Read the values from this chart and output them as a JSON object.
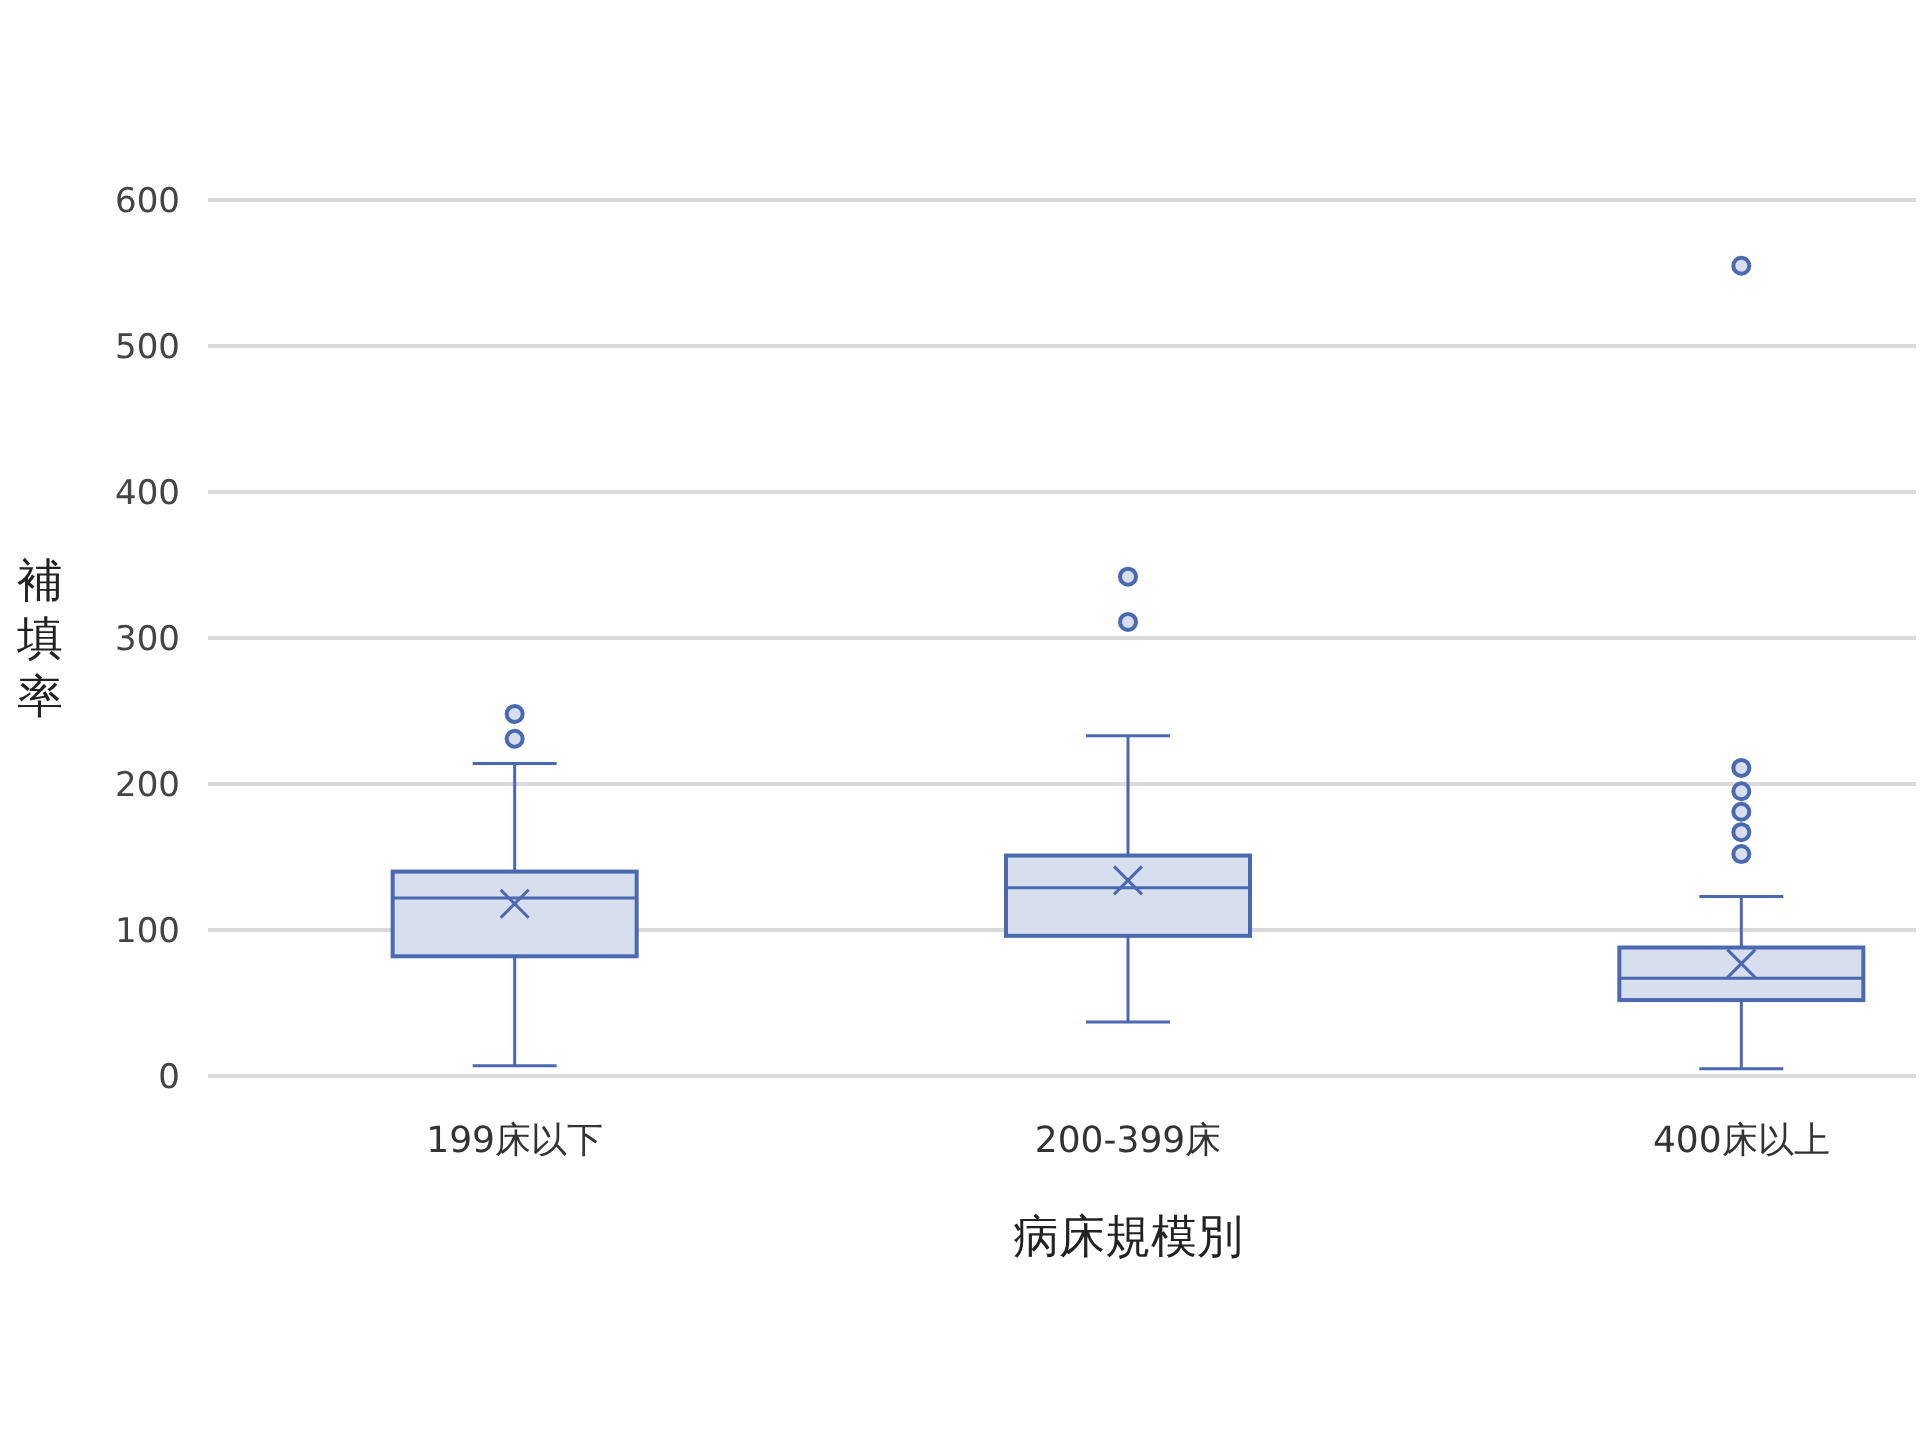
{
  "chart_data": {
    "type": "box",
    "xlabel": "病床規模別",
    "ylabel": "補填率",
    "categories": [
      "199床以下",
      "200-399床",
      "400床以上"
    ],
    "color": "#4a69b0",
    "boxes": [
      {
        "low": 7,
        "q1": 82,
        "median": 122,
        "q3": 140,
        "high": 214,
        "mean": 118,
        "outliers": [
          231,
          248
        ]
      },
      {
        "low": 37,
        "q1": 96,
        "median": 129,
        "q3": 151,
        "high": 233,
        "mean": 134,
        "outliers": [
          311,
          342
        ]
      },
      {
        "low": 5,
        "q1": 52,
        "median": 67,
        "q3": 88,
        "high": 123,
        "mean": 77,
        "outliers": [
          152,
          167,
          181,
          195,
          211,
          555
        ]
      }
    ],
    "ylim": [
      0,
      600
    ],
    "yticks": [
      0,
      100,
      200,
      300,
      400,
      500,
      600
    ],
    "grid": "y",
    "marker": "circle"
  }
}
